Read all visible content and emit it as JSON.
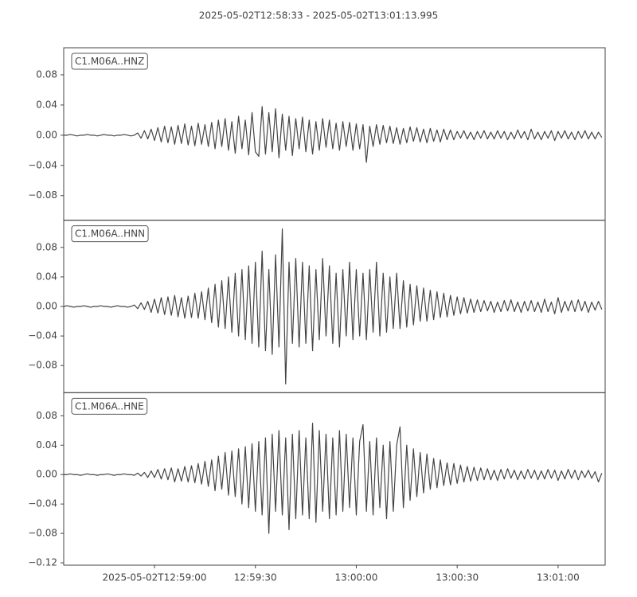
{
  "title": "2025-05-02T12:58:33  -  2025-05-02T13:01:13.995",
  "chart_data": [
    {
      "type": "line",
      "label": "C1.M06A..HNZ",
      "color": "#444444",
      "xlim": [
        0,
        160.995
      ],
      "ylim": [
        -0.1126,
        0.1158
      ],
      "yticks": [
        0.08,
        0.04,
        {
          "value": 0,
          "label": "0.00"
        },
        {
          "value": -0.04,
          "label": "−0.04"
        },
        {
          "value": -0.08,
          "label": "−0.08"
        }
      ],
      "x": [
        0,
        1,
        2,
        3,
        4,
        5,
        6,
        7,
        8,
        9,
        10,
        11,
        12,
        13,
        14,
        15,
        16,
        17,
        18,
        19,
        20,
        21,
        22,
        23,
        24,
        25,
        26,
        27,
        28,
        29,
        30,
        31,
        32,
        33,
        34,
        35,
        36,
        37,
        38,
        39,
        40,
        41,
        42,
        43,
        44,
        45,
        46,
        47,
        48,
        49,
        50,
        51,
        52,
        53,
        54,
        55,
        56,
        57,
        58,
        59,
        60,
        61,
        62,
        63,
        64,
        65,
        66,
        67,
        68,
        69,
        70,
        71,
        72,
        73,
        74,
        75,
        76,
        77,
        78,
        79,
        80,
        81,
        82,
        83,
        84,
        85,
        86,
        87,
        88,
        89,
        90,
        91,
        92,
        93,
        94,
        95,
        96,
        97,
        98,
        99,
        100,
        101,
        102,
        103,
        104,
        105,
        106,
        107,
        108,
        109,
        110,
        111,
        112,
        113,
        114,
        115,
        116,
        117,
        118,
        119,
        120,
        121,
        122,
        123,
        124,
        125,
        126,
        127,
        128,
        129,
        130,
        131,
        132,
        133,
        134,
        135,
        136,
        137,
        138,
        139,
        140,
        141,
        142,
        143,
        144,
        145,
        146,
        147,
        148,
        149,
        150,
        151,
        152,
        153,
        154,
        155,
        156,
        157,
        158,
        159,
        160
      ],
      "values": [
        0,
        0,
        0.001,
        0,
        -0.001,
        0,
        0,
        0.001,
        0,
        0,
        -0.001,
        0,
        0.001,
        0,
        0,
        -0.001,
        0,
        0,
        0.001,
        0,
        -0.001,
        0,
        0.003,
        -0.004,
        0.006,
        -0.005,
        0.008,
        -0.007,
        0.01,
        -0.009,
        0.012,
        -0.01,
        0.011,
        -0.012,
        0.013,
        -0.011,
        0.015,
        -0.013,
        0.012,
        -0.014,
        0.016,
        -0.012,
        0.014,
        -0.015,
        0.017,
        -0.018,
        0.02,
        -0.015,
        0.022,
        -0.02,
        0.018,
        -0.024,
        0.025,
        -0.018,
        0.02,
        -0.026,
        0.03,
        -0.022,
        -0.028,
        0.038,
        -0.025,
        0.03,
        -0.022,
        0.035,
        -0.03,
        0.028,
        -0.02,
        0.025,
        -0.027,
        0.022,
        -0.018,
        0.024,
        -0.022,
        0.02,
        -0.025,
        0.018,
        -0.02,
        0.022,
        -0.016,
        0.02,
        -0.018,
        0.016,
        -0.02,
        0.018,
        -0.015,
        0.017,
        -0.02,
        0.015,
        -0.018,
        0.014,
        -0.036,
        0.012,
        -0.015,
        0.014,
        -0.012,
        0.013,
        -0.01,
        0.012,
        -0.011,
        0.01,
        -0.012,
        0.009,
        -0.01,
        0.011,
        -0.008,
        0.01,
        -0.009,
        0.008,
        -0.01,
        0.009,
        -0.008,
        0.007,
        -0.009,
        0.008,
        -0.006,
        0.007,
        -0.006,
        0.005,
        -0.004,
        0.006,
        -0.005,
        0.004,
        -0.006,
        0.005,
        -0.004,
        0.006,
        -0.005,
        0.004,
        -0.005,
        0.006,
        -0.004,
        0.005,
        -0.006,
        0.004,
        -0.005,
        0.007,
        -0.004,
        0.005,
        -0.006,
        0.008,
        -0.005,
        0.004,
        -0.006,
        0.005,
        -0.004,
        0.006,
        -0.007,
        0.005,
        -0.004,
        0.006,
        -0.005,
        0.004,
        -0.006,
        0.005,
        -0.004,
        0.006,
        -0.005,
        0.004,
        -0.005,
        0.004,
        -0.003
      ]
    },
    {
      "type": "line",
      "label": "C1.M06A..HNN",
      "color": "#444444",
      "xlim": [
        0,
        160.995
      ],
      "ylim": [
        -0.1168,
        0.1168
      ],
      "yticks": [
        0.08,
        0.04,
        {
          "value": 0,
          "label": "0.00"
        },
        {
          "value": -0.04,
          "label": "−0.04"
        },
        {
          "value": -0.08,
          "label": "−0.08"
        }
      ],
      "x": [
        0,
        1,
        2,
        3,
        4,
        5,
        6,
        7,
        8,
        9,
        10,
        11,
        12,
        13,
        14,
        15,
        16,
        17,
        18,
        19,
        20,
        21,
        22,
        23,
        24,
        25,
        26,
        27,
        28,
        29,
        30,
        31,
        32,
        33,
        34,
        35,
        36,
        37,
        38,
        39,
        40,
        41,
        42,
        43,
        44,
        45,
        46,
        47,
        48,
        49,
        50,
        51,
        52,
        53,
        54,
        55,
        56,
        57,
        58,
        59,
        60,
        61,
        62,
        63,
        64,
        65,
        66,
        67,
        68,
        69,
        70,
        71,
        72,
        73,
        74,
        75,
        76,
        77,
        78,
        79,
        80,
        81,
        82,
        83,
        84,
        85,
        86,
        87,
        88,
        89,
        90,
        91,
        92,
        93,
        94,
        95,
        96,
        97,
        98,
        99,
        100,
        101,
        102,
        103,
        104,
        105,
        106,
        107,
        108,
        109,
        110,
        111,
        112,
        113,
        114,
        115,
        116,
        117,
        118,
        119,
        120,
        121,
        122,
        123,
        124,
        125,
        126,
        127,
        128,
        129,
        130,
        131,
        132,
        133,
        134,
        135,
        136,
        137,
        138,
        139,
        140,
        141,
        142,
        143,
        144,
        145,
        146,
        147,
        148,
        149,
        150,
        151,
        152,
        153,
        154,
        155,
        156,
        157,
        158,
        159,
        160
      ],
      "values": [
        0,
        0.001,
        0,
        -0.001,
        0,
        0,
        0.001,
        0,
        -0.001,
        0,
        0,
        0.001,
        0,
        0,
        -0.001,
        0,
        0.001,
        0,
        0,
        -0.001,
        0,
        0.002,
        -0.003,
        0.005,
        -0.004,
        0.007,
        -0.008,
        0.01,
        -0.009,
        0.012,
        -0.011,
        0.013,
        -0.012,
        0.015,
        -0.014,
        0.012,
        -0.016,
        0.014,
        -0.015,
        0.018,
        -0.016,
        0.02,
        -0.018,
        0.025,
        -0.022,
        0.03,
        -0.028,
        0.035,
        -0.03,
        0.04,
        -0.035,
        0.045,
        -0.04,
        0.05,
        -0.045,
        0.055,
        -0.05,
        0.06,
        -0.055,
        0.075,
        -0.06,
        0.05,
        -0.065,
        0.07,
        -0.055,
        0.105,
        -0.105,
        0.06,
        -0.05,
        0.065,
        -0.055,
        0.06,
        -0.05,
        0.055,
        -0.06,
        0.05,
        -0.045,
        0.065,
        -0.04,
        0.055,
        -0.05,
        0.045,
        -0.055,
        0.05,
        -0.04,
        0.06,
        -0.045,
        0.05,
        -0.04,
        0.045,
        -0.045,
        0.05,
        -0.035,
        0.06,
        -0.04,
        0.045,
        -0.035,
        0.04,
        -0.03,
        0.045,
        -0.03,
        0.035,
        -0.028,
        0.03,
        -0.025,
        0.028,
        -0.02,
        0.025,
        -0.02,
        0.022,
        -0.018,
        0.02,
        -0.015,
        0.018,
        -0.014,
        0.015,
        -0.012,
        0.013,
        -0.01,
        0.012,
        -0.009,
        0.01,
        -0.008,
        0.009,
        -0.007,
        0.008,
        -0.006,
        0.007,
        -0.008,
        0.006,
        -0.007,
        0.008,
        -0.006,
        0.009,
        -0.007,
        0.006,
        -0.008,
        0.007,
        -0.006,
        0.008,
        -0.007,
        0.006,
        -0.008,
        0.01,
        -0.007,
        0.006,
        -0.01,
        0.012,
        -0.008,
        0.007,
        -0.006,
        0.008,
        -0.007,
        0.009,
        -0.006,
        0.007,
        -0.008,
        0.006,
        -0.005,
        0.007,
        -0.004
      ]
    },
    {
      "type": "line",
      "label": "C1.M06A..HNE",
      "color": "#444444",
      "xlim": [
        0,
        160.995
      ],
      "ylim": [
        -0.1232,
        0.1114
      ],
      "yticks": [
        0.08,
        0.04,
        {
          "value": 0,
          "label": "0.00"
        },
        {
          "value": -0.04,
          "label": "−0.04"
        },
        {
          "value": -0.08,
          "label": "−0.08"
        },
        {
          "value": -0.12,
          "label": "−0.12"
        }
      ],
      "xticks": [
        {
          "value": 27,
          "label": "2025-05-02T12:59:00"
        },
        {
          "value": 57,
          "label": "12:59:30"
        },
        {
          "value": 87,
          "label": "13:00:00"
        },
        {
          "value": 117,
          "label": "13:00:30"
        },
        {
          "value": 147,
          "label": "13:01:00"
        }
      ],
      "x": [
        0,
        1,
        2,
        3,
        4,
        5,
        6,
        7,
        8,
        9,
        10,
        11,
        12,
        13,
        14,
        15,
        16,
        17,
        18,
        19,
        20,
        21,
        22,
        23,
        24,
        25,
        26,
        27,
        28,
        29,
        30,
        31,
        32,
        33,
        34,
        35,
        36,
        37,
        38,
        39,
        40,
        41,
        42,
        43,
        44,
        45,
        46,
        47,
        48,
        49,
        50,
        51,
        52,
        53,
        54,
        55,
        56,
        57,
        58,
        59,
        60,
        61,
        62,
        63,
        64,
        65,
        66,
        67,
        68,
        69,
        70,
        71,
        72,
        73,
        74,
        75,
        76,
        77,
        78,
        79,
        80,
        81,
        82,
        83,
        84,
        85,
        86,
        87,
        88,
        89,
        90,
        91,
        92,
        93,
        94,
        95,
        96,
        97,
        98,
        99,
        100,
        101,
        102,
        103,
        104,
        105,
        106,
        107,
        108,
        109,
        110,
        111,
        112,
        113,
        114,
        115,
        116,
        117,
        118,
        119,
        120,
        121,
        122,
        123,
        124,
        125,
        126,
        127,
        128,
        129,
        130,
        131,
        132,
        133,
        134,
        135,
        136,
        137,
        138,
        139,
        140,
        141,
        142,
        143,
        144,
        145,
        146,
        147,
        148,
        149,
        150,
        151,
        152,
        153,
        154,
        155,
        156,
        157,
        158,
        159,
        160
      ],
      "values": [
        0,
        0,
        0.001,
        0,
        0,
        -0.001,
        0,
        0.001,
        0,
        0,
        -0.001,
        0,
        0,
        0.001,
        0,
        -0.001,
        0,
        0,
        0.001,
        0,
        0,
        -0.001,
        0.002,
        -0.002,
        0.003,
        -0.004,
        0.005,
        -0.004,
        0.007,
        -0.006,
        0.008,
        -0.007,
        0.009,
        -0.01,
        0.008,
        -0.009,
        0.011,
        -0.01,
        0.012,
        -0.011,
        0.015,
        -0.013,
        0.018,
        -0.016,
        0.02,
        -0.022,
        0.025,
        -0.02,
        0.03,
        -0.028,
        0.032,
        -0.03,
        0.035,
        -0.04,
        0.038,
        -0.045,
        0.042,
        -0.05,
        0.045,
        -0.055,
        0.05,
        -0.08,
        0.055,
        -0.05,
        0.06,
        -0.055,
        0.05,
        -0.075,
        0.055,
        -0.06,
        0.06,
        -0.055,
        0.05,
        -0.06,
        0.07,
        -0.065,
        0.06,
        -0.05,
        0.055,
        -0.06,
        0.05,
        -0.055,
        0.06,
        -0.05,
        0.055,
        -0.045,
        0.05,
        -0.055,
        0.045,
        0.068,
        -0.05,
        0.045,
        -0.055,
        0.05,
        -0.045,
        0.04,
        -0.06,
        0.045,
        -0.05,
        0.04,
        0.065,
        -0.045,
        0.04,
        -0.035,
        0.035,
        -0.03,
        0.03,
        -0.025,
        0.028,
        -0.02,
        0.022,
        -0.018,
        0.02,
        -0.015,
        0.016,
        -0.014,
        0.015,
        -0.012,
        0.013,
        -0.01,
        0.011,
        -0.009,
        0.01,
        -0.008,
        0.009,
        -0.007,
        0.008,
        -0.007,
        0.006,
        -0.008,
        0.007,
        -0.006,
        0.008,
        -0.005,
        0.006,
        -0.007,
        0.005,
        -0.006,
        0.007,
        -0.005,
        0.006,
        -0.007,
        0.005,
        -0.006,
        0.007,
        -0.005,
        0.006,
        -0.008,
        0.005,
        -0.006,
        0.007,
        -0.005,
        0.006,
        -0.007,
        0.005,
        -0.004,
        0.006,
        -0.005,
        0.004,
        -0.01,
        0.002
      ]
    }
  ]
}
